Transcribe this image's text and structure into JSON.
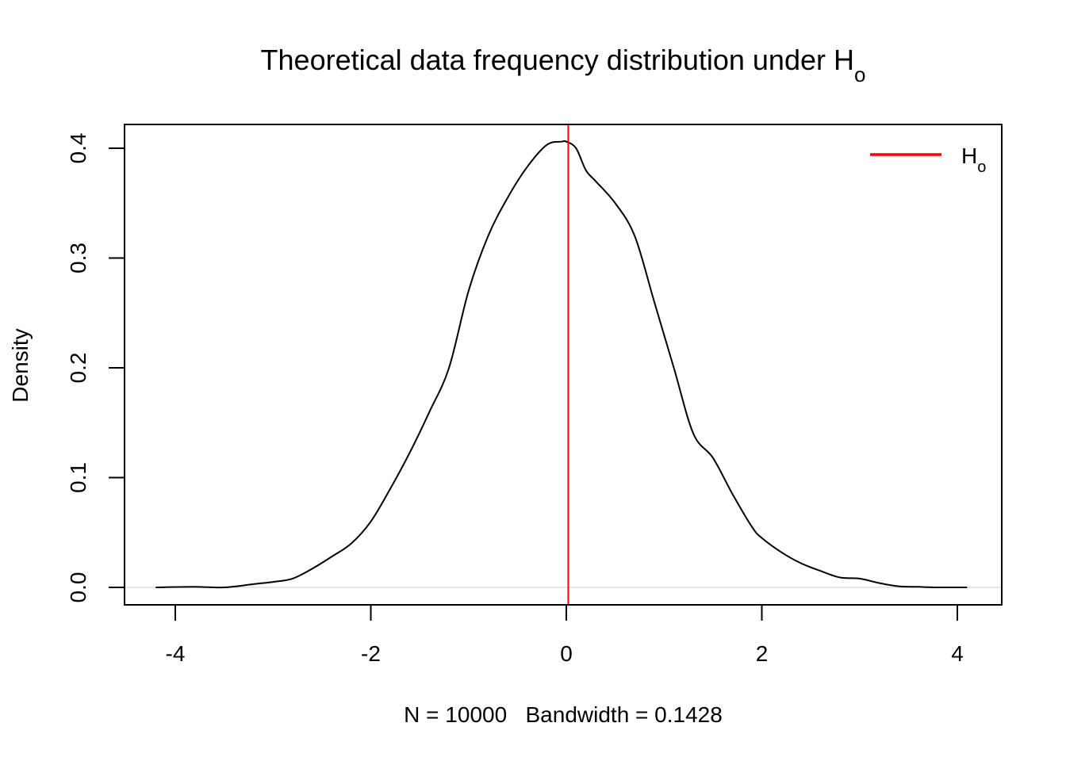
{
  "chart_data": {
    "type": "line",
    "title": "Theoretical data frequency distribution under H",
    "title_subscript": "o",
    "xlabel": "N = 10000   Bandwidth = 0.1428",
    "ylabel": "Density",
    "xlim": [
      -4.2,
      4.1
    ],
    "ylim": [
      0,
      0.41
    ],
    "x_ticks": [
      -4,
      -2,
      0,
      2,
      4
    ],
    "x_tick_labels": [
      "-4",
      "-2",
      "0",
      "2",
      "4"
    ],
    "y_ticks": [
      0.0,
      0.1,
      0.2,
      0.3,
      0.4
    ],
    "y_tick_labels": [
      "0.0",
      "0.1",
      "0.2",
      "0.3",
      "0.4"
    ],
    "grid": false,
    "legend": {
      "position": "top-right",
      "entries": [
        {
          "label": "H",
          "subscript": "o",
          "color": "#ff0000"
        }
      ]
    },
    "series": [
      {
        "color": "#000000",
        "x": [
          -4.2,
          -3.8,
          -3.5,
          -3.2,
          -3.0,
          -2.8,
          -2.6,
          -2.4,
          -2.2,
          -2.0,
          -1.8,
          -1.6,
          -1.4,
          -1.2,
          -1.0,
          -0.8,
          -0.6,
          -0.4,
          -0.2,
          -0.05,
          0.0,
          0.1,
          0.2,
          0.3,
          0.5,
          0.7,
          0.9,
          1.1,
          1.3,
          1.5,
          1.7,
          1.9,
          2.0,
          2.2,
          2.4,
          2.6,
          2.8,
          3.0,
          3.2,
          3.4,
          3.6,
          3.8,
          4.1
        ],
        "y": [
          0.0,
          0.0005,
          0.0,
          0.003,
          0.005,
          0.008,
          0.017,
          0.028,
          0.04,
          0.06,
          0.09,
          0.123,
          0.16,
          0.2,
          0.27,
          0.32,
          0.355,
          0.383,
          0.403,
          0.406,
          0.406,
          0.4,
          0.38,
          0.37,
          0.35,
          0.32,
          0.26,
          0.2,
          0.14,
          0.118,
          0.085,
          0.055,
          0.045,
          0.032,
          0.022,
          0.015,
          0.009,
          0.008,
          0.004,
          0.001,
          0.0005,
          0.0,
          0.0
        ]
      }
    ],
    "reference_line": {
      "x": 0.02,
      "color": "#ff0000"
    },
    "zero_line_color": "#cccccc"
  }
}
